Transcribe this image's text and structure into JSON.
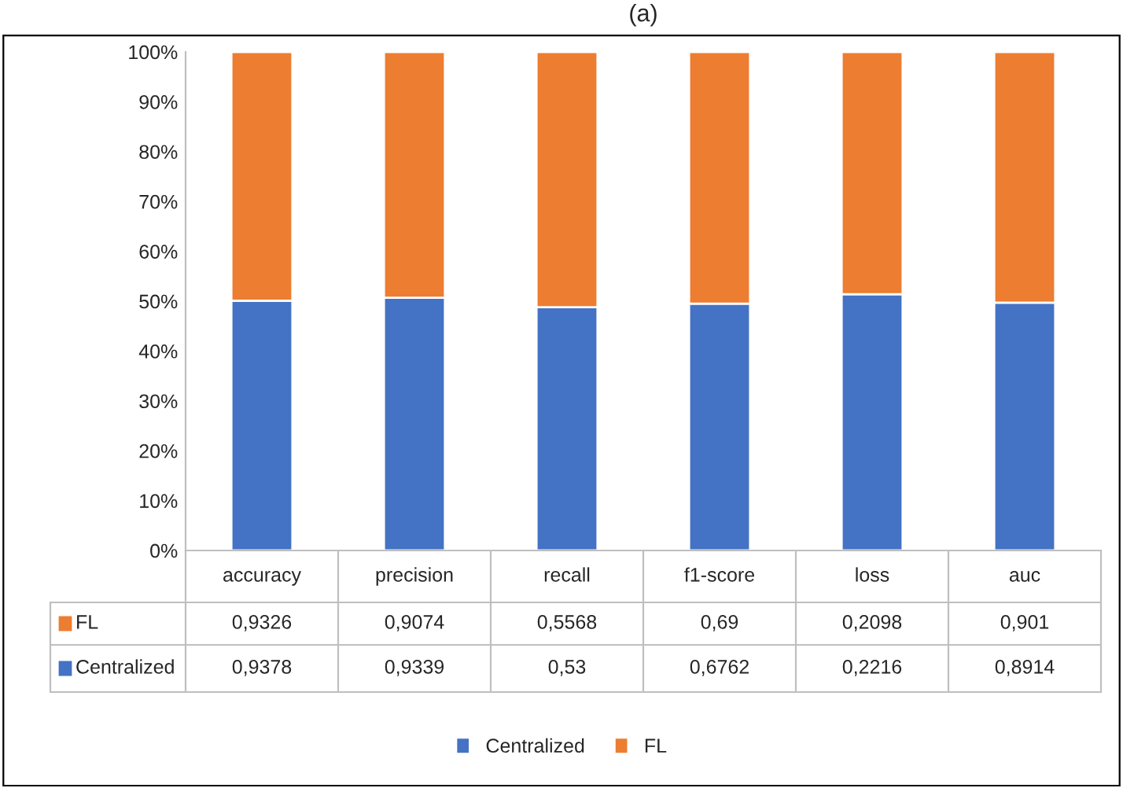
{
  "chart_data": {
    "type": "bar",
    "title": "(a)",
    "stacked": true,
    "categories": [
      "accuracy",
      "precision",
      "recall",
      "f1-score",
      "loss",
      "auc"
    ],
    "series": [
      {
        "name": "Centralized",
        "color": "#4472c4",
        "values": [
          50.1,
          50.7,
          48.8,
          49.5,
          51.4,
          49.7
        ]
      },
      {
        "name": "FL",
        "color": "#ed7d31",
        "values": [
          49.9,
          49.3,
          51.2,
          50.5,
          48.6,
          50.3
        ]
      }
    ],
    "annotations": [
      "0,9326",
      "0,9074",
      "0,5568",
      "0,69",
      "0,2098",
      "0,901",
      "0,9378",
      "0,9339",
      "0,53",
      "0,6762",
      "0,2216",
      "0,8914"
    ],
    "ylim": [
      0,
      100
    ],
    "yticks": [
      {
        "value": 0,
        "label": "0%"
      },
      {
        "value": 10,
        "label": "10%"
      },
      {
        "value": 20,
        "label": "20%"
      },
      {
        "value": 30,
        "label": "30%"
      },
      {
        "value": 40,
        "label": "40%"
      },
      {
        "value": 50,
        "label": "50%"
      },
      {
        "value": 60,
        "label": "60%"
      },
      {
        "value": 70,
        "label": "70%"
      },
      {
        "value": 80,
        "label": "80%"
      },
      {
        "value": 90,
        "label": "90%"
      },
      {
        "value": 100,
        "label": "100%"
      }
    ],
    "legend": "bottom"
  }
}
